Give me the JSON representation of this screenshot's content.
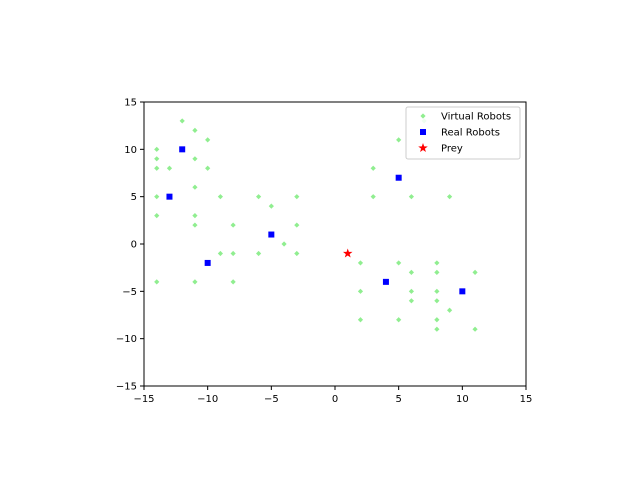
{
  "chart_data": {
    "type": "scatter",
    "xlim": [
      -15,
      15
    ],
    "ylim": [
      -15,
      15
    ],
    "xticks": [
      -15,
      -10,
      -5,
      0,
      5,
      10,
      15
    ],
    "yticks": [
      -15,
      -10,
      -5,
      0,
      5,
      10,
      15
    ],
    "grid": false,
    "legend_position": "top-right",
    "series": [
      {
        "name": "Virtual Robots",
        "marker": "diamond",
        "color": "#90ee90",
        "points": [
          [
            -14,
            10
          ],
          [
            -14,
            9
          ],
          [
            -14,
            8
          ],
          [
            -14,
            5
          ],
          [
            -14,
            3
          ],
          [
            -14,
            -4
          ],
          [
            -13,
            8
          ],
          [
            -12,
            13
          ],
          [
            -11,
            12
          ],
          [
            -11,
            9
          ],
          [
            -11,
            6
          ],
          [
            -11,
            3
          ],
          [
            -11,
            2
          ],
          [
            -11,
            -4
          ],
          [
            -10,
            11
          ],
          [
            -10,
            8
          ],
          [
            -9,
            5
          ],
          [
            -9,
            -1
          ],
          [
            -8,
            2
          ],
          [
            -8,
            -1
          ],
          [
            -8,
            -4
          ],
          [
            -6,
            5
          ],
          [
            -6,
            -1
          ],
          [
            -5,
            4
          ],
          [
            -4,
            0
          ],
          [
            -3,
            5
          ],
          [
            -3,
            2
          ],
          [
            -3,
            -1
          ],
          [
            2,
            -2
          ],
          [
            2,
            -5
          ],
          [
            2,
            -8
          ],
          [
            3,
            8
          ],
          [
            3,
            5
          ],
          [
            5,
            11
          ],
          [
            5,
            -2
          ],
          [
            5,
            -8
          ],
          [
            6,
            5
          ],
          [
            6,
            -3
          ],
          [
            6,
            -5
          ],
          [
            6,
            -6
          ],
          [
            7,
            13
          ],
          [
            8,
            -2
          ],
          [
            8,
            -3
          ],
          [
            8,
            -5
          ],
          [
            8,
            -6
          ],
          [
            8,
            -8
          ],
          [
            8,
            -9
          ],
          [
            9,
            5
          ],
          [
            9,
            -7
          ],
          [
            11,
            -3
          ],
          [
            11,
            -9
          ]
        ]
      },
      {
        "name": "Real Robots",
        "marker": "square",
        "color": "#0000ff",
        "points": [
          [
            -12,
            10
          ],
          [
            -13,
            5
          ],
          [
            -5,
            1
          ],
          [
            -10,
            -2
          ],
          [
            5,
            7
          ],
          [
            4,
            -4
          ],
          [
            10,
            -5
          ]
        ]
      },
      {
        "name": "Prey",
        "marker": "star",
        "color": "#ff0000",
        "points": [
          [
            1,
            -1
          ]
        ]
      }
    ]
  }
}
